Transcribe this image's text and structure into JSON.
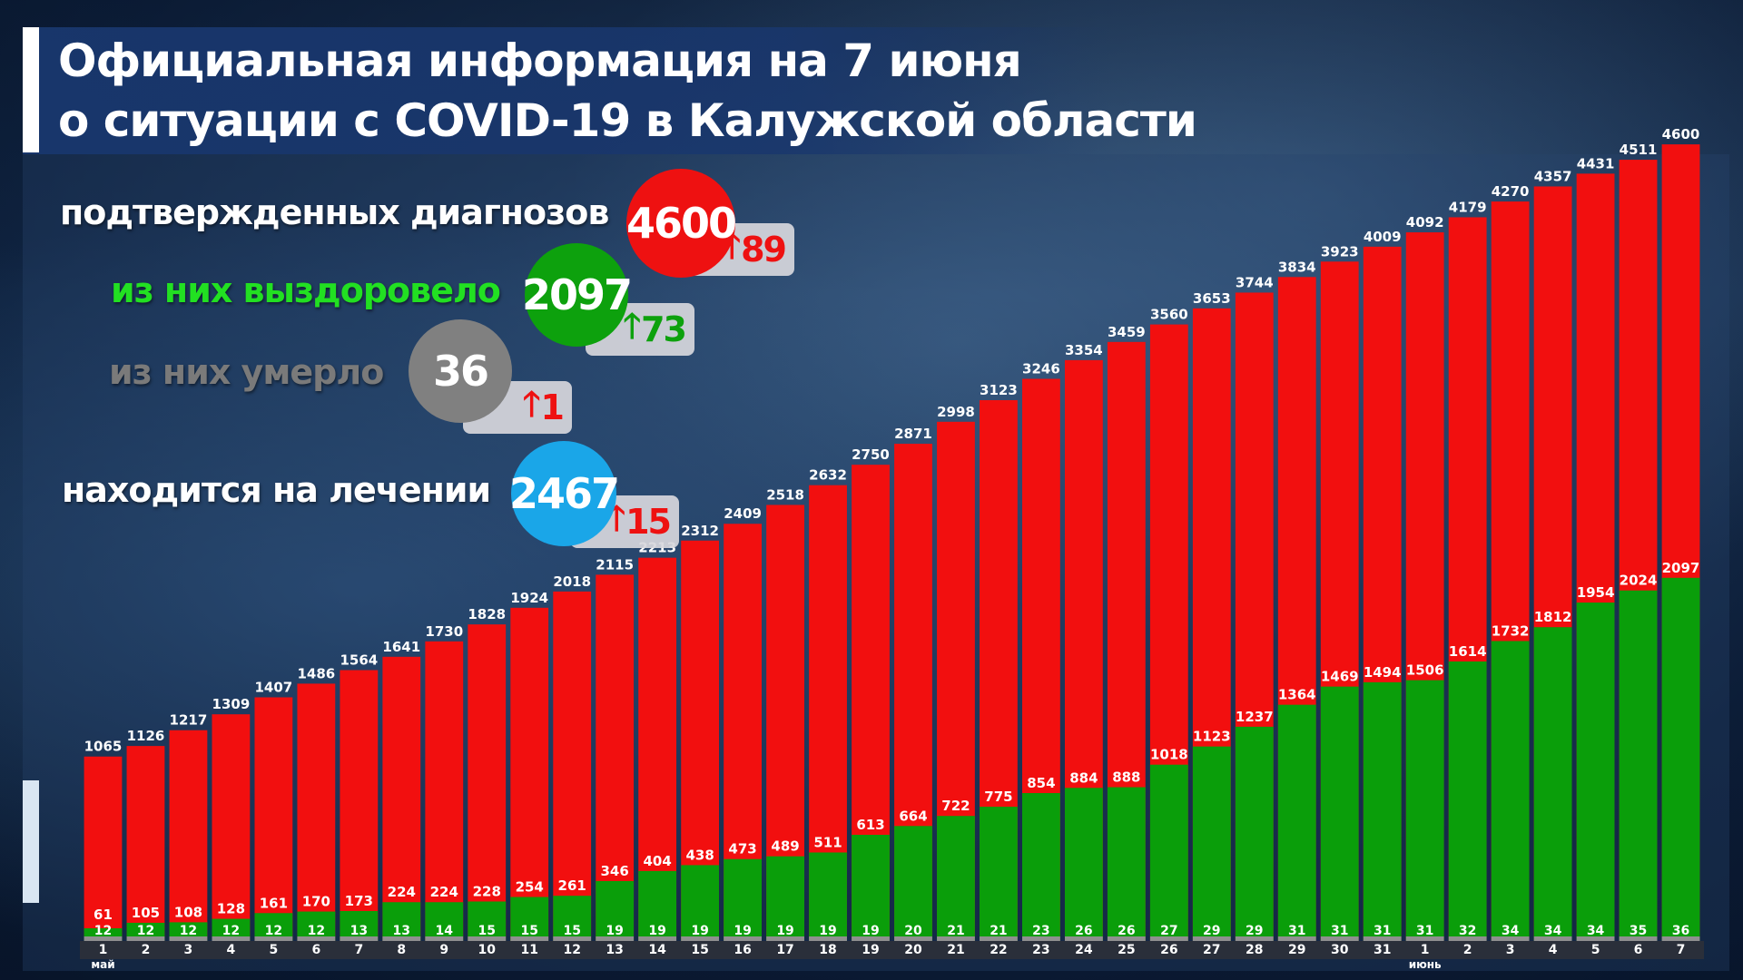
{
  "title": {
    "line1": "Официальная информация на 7 июня",
    "line2": "о ситуации с COVID-19 в Калужской области"
  },
  "stats": {
    "confirmed": {
      "label": "подтвержденных диагнозов",
      "value": "4600",
      "delta": "89",
      "color": "#ee1111",
      "delta_color": "#ee1111"
    },
    "recovered": {
      "label": "из них выздоровело",
      "value": "2097",
      "delta": "73",
      "color": "#0da10d",
      "delta_color": "#0da10d",
      "label_color": "#22e022"
    },
    "deaths": {
      "label": "из них умерло",
      "value": "36",
      "delta": "1",
      "color": "#808080",
      "delta_color": "#ee1111",
      "label_color": "#7a7a7a"
    },
    "treatment": {
      "label": "находится на лечении",
      "value": "2467",
      "delta": "15",
      "color": "#1aa6e8",
      "delta_color": "#ee1111"
    }
  },
  "colors": {
    "confirmed": "#f20f0f",
    "recovered": "#0a9e0a",
    "deaths": "#909090"
  },
  "chart_data": {
    "type": "bar",
    "x": [
      "1",
      "2",
      "3",
      "4",
      "5",
      "6",
      "7",
      "8",
      "9",
      "10",
      "11",
      "12",
      "13",
      "14",
      "15",
      "16",
      "17",
      "18",
      "19",
      "20",
      "21",
      "22",
      "23",
      "24",
      "25",
      "26",
      "27",
      "28",
      "29",
      "30",
      "31",
      "1",
      "2",
      "3",
      "4",
      "5",
      "6",
      "7"
    ],
    "month_labels": [
      {
        "index": 0,
        "label": "май"
      },
      {
        "index": 31,
        "label": "июнь"
      }
    ],
    "series": [
      {
        "name": "подтвержденных диагнозов",
        "values": [
          1065,
          1126,
          1217,
          1309,
          1407,
          1486,
          1564,
          1641,
          1730,
          1828,
          1924,
          2018,
          2115,
          2213,
          2312,
          2409,
          2518,
          2632,
          2750,
          2871,
          2998,
          3123,
          3246,
          3354,
          3459,
          3560,
          3653,
          3744,
          3834,
          3923,
          4009,
          4092,
          4179,
          4270,
          4357,
          4431,
          4511,
          4600
        ]
      },
      {
        "name": "из них выздоровело",
        "values": [
          61,
          105,
          108,
          128,
          161,
          170,
          173,
          224,
          224,
          228,
          254,
          261,
          346,
          404,
          438,
          473,
          489,
          511,
          613,
          664,
          722,
          775,
          854,
          884,
          888,
          1018,
          1123,
          1237,
          1364,
          1469,
          1494,
          1506,
          1614,
          1732,
          1812,
          1954,
          2024,
          2097
        ]
      },
      {
        "name": "из них умерло",
        "values": [
          12,
          12,
          12,
          12,
          12,
          12,
          13,
          13,
          14,
          15,
          15,
          15,
          19,
          19,
          19,
          19,
          19,
          19,
          19,
          20,
          21,
          21,
          23,
          26,
          26,
          27,
          29,
          29,
          31,
          31,
          31,
          31,
          32,
          34,
          34,
          34,
          35,
          36
        ]
      }
    ],
    "ylim": [
      0,
      4700
    ]
  }
}
